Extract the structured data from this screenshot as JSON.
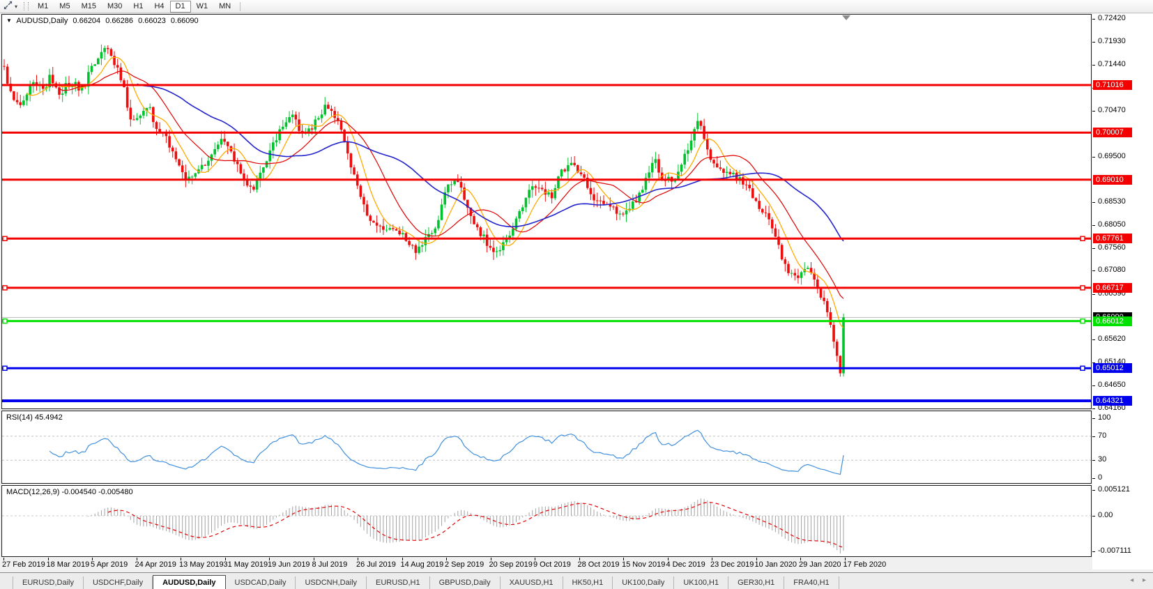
{
  "toolbar": {
    "dropdown_glyph": "▾",
    "timeframes": [
      "M1",
      "M5",
      "M15",
      "M30",
      "H1",
      "H4",
      "D1",
      "W1",
      "MN"
    ],
    "active_timeframe": "D1"
  },
  "chart": {
    "title": {
      "marker_glyph": "▼",
      "symbol": "AUDUSD,Daily",
      "open": "0.66204",
      "high": "0.66286",
      "low": "0.66023",
      "close": "0.66090"
    },
    "current_price": {
      "label": "0.66090",
      "value": 0.6609
    },
    "price_ticks": [
      "0.72420",
      "0.71930",
      "0.71440",
      "0.70960",
      "0.70470",
      "0.69500",
      "0.68530",
      "0.68050",
      "0.67560",
      "0.67080",
      "0.66590",
      "0.65620",
      "0.65140",
      "0.64650",
      "0.64160"
    ],
    "hlines": [
      {
        "label": "0.71016",
        "price": 0.71016,
        "color": "#f40000",
        "width": 3,
        "handles": false
      },
      {
        "label": "0.70007",
        "price": 0.70007,
        "color": "#f40000",
        "width": 3,
        "handles": false
      },
      {
        "label": "0.69010",
        "price": 0.6901,
        "color": "#f40000",
        "width": 3,
        "handles": false
      },
      {
        "label": "0.67761",
        "price": 0.67761,
        "color": "#f40000",
        "width": 3,
        "handles": true
      },
      {
        "label": "0.66717",
        "price": 0.66717,
        "color": "#f40000",
        "width": 3,
        "handles": true
      },
      {
        "label": "0.66012",
        "price": 0.66012,
        "color": "#00e100",
        "width": 3,
        "handles": true
      },
      {
        "label": "0.65012",
        "price": 0.65012,
        "color": "#0000ee",
        "width": 3,
        "handles": true
      },
      {
        "label": "0.64321",
        "price": 0.64321,
        "color": "#0000ee",
        "width": 4,
        "handles": false
      }
    ],
    "dates": [
      "27 Feb 2019",
      "18 Mar 2019",
      "5 Apr 2019",
      "24 Apr 2019",
      "13 May 2019",
      "31 May 2019",
      "19 Jun 2019",
      "8 Jul 2019",
      "26 Jul 2019",
      "14 Aug 2019",
      "2 Sep 2019",
      "20 Sep 2019",
      "9 Oct 2019",
      "28 Oct 2019",
      "15 Nov 2019",
      "4 Dec 2019",
      "23 Dec 2019",
      "10 Jan 2020",
      "29 Jan 2020",
      "17 Feb 2020"
    ],
    "bar_count": 260,
    "colors": {
      "bull": "#00c22c",
      "bear": "#ee0c0c",
      "ma_fast": "#ffaa00",
      "ma_mid": "#e00000",
      "ma_slow": "#2323cc",
      "bid_line": "#b8b8b8"
    },
    "ma_periods": {
      "fast": 8,
      "mid": 18,
      "slow": 42
    },
    "price_path": [
      [
        6,
        0.7135
      ],
      [
        14,
        0.7095
      ],
      [
        22,
        0.7068
      ],
      [
        30,
        0.7055
      ],
      [
        38,
        0.7082
      ],
      [
        46,
        0.7105
      ],
      [
        56,
        0.71
      ],
      [
        64,
        0.7088
      ],
      [
        72,
        0.7125
      ],
      [
        78,
        0.7098
      ],
      [
        86,
        0.708
      ],
      [
        95,
        0.71
      ],
      [
        104,
        0.711
      ],
      [
        112,
        0.7096
      ],
      [
        120,
        0.7095
      ],
      [
        130,
        0.7134
      ],
      [
        140,
        0.716
      ],
      [
        148,
        0.7182
      ],
      [
        154,
        0.7188
      ],
      [
        162,
        0.7156
      ],
      [
        172,
        0.7127
      ],
      [
        180,
        0.708
      ],
      [
        188,
        0.702
      ],
      [
        196,
        0.7028
      ],
      [
        205,
        0.7045
      ],
      [
        213,
        0.706
      ],
      [
        222,
        0.7016
      ],
      [
        232,
        0.7
      ],
      [
        242,
        0.698
      ],
      [
        252,
        0.6945
      ],
      [
        260,
        0.692
      ],
      [
        270,
        0.69
      ],
      [
        280,
        0.6912
      ],
      [
        292,
        0.693
      ],
      [
        304,
        0.6955
      ],
      [
        314,
        0.6985
      ],
      [
        320,
        0.6996
      ],
      [
        330,
        0.6962
      ],
      [
        340,
        0.6935
      ],
      [
        352,
        0.69
      ],
      [
        362,
        0.688
      ],
      [
        372,
        0.6912
      ],
      [
        384,
        0.695
      ],
      [
        396,
        0.699
      ],
      [
        408,
        0.7024
      ],
      [
        418,
        0.7045
      ],
      [
        428,
        0.701
      ],
      [
        438,
        0.7
      ],
      [
        448,
        0.7015
      ],
      [
        458,
        0.7035
      ],
      [
        468,
        0.7062
      ],
      [
        478,
        0.7045
      ],
      [
        490,
        0.7002
      ],
      [
        502,
        0.694
      ],
      [
        514,
        0.688
      ],
      [
        526,
        0.6832
      ],
      [
        538,
        0.6805
      ],
      [
        548,
        0.6795
      ],
      [
        558,
        0.6806
      ],
      [
        568,
        0.6797
      ],
      [
        578,
        0.678
      ],
      [
        588,
        0.676
      ],
      [
        596,
        0.6752
      ],
      [
        606,
        0.6766
      ],
      [
        616,
        0.6782
      ],
      [
        628,
        0.6812
      ],
      [
        638,
        0.6868
      ],
      [
        648,
        0.69
      ],
      [
        654,
        0.6905
      ],
      [
        664,
        0.6868
      ],
      [
        676,
        0.6825
      ],
      [
        688,
        0.679
      ],
      [
        700,
        0.6765
      ],
      [
        712,
        0.6747
      ],
      [
        722,
        0.6765
      ],
      [
        732,
        0.6785
      ],
      [
        742,
        0.682
      ],
      [
        752,
        0.6855
      ],
      [
        762,
        0.6882
      ],
      [
        772,
        0.6884
      ],
      [
        782,
        0.6874
      ],
      [
        792,
        0.6866
      ],
      [
        802,
        0.6908
      ],
      [
        812,
        0.693
      ],
      [
        822,
        0.6935
      ],
      [
        832,
        0.6912
      ],
      [
        842,
        0.6892
      ],
      [
        852,
        0.686
      ],
      [
        862,
        0.6848
      ],
      [
        872,
        0.6842
      ],
      [
        882,
        0.6835
      ],
      [
        892,
        0.682
      ],
      [
        902,
        0.6845
      ],
      [
        912,
        0.6855
      ],
      [
        922,
        0.6885
      ],
      [
        932,
        0.692
      ],
      [
        940,
        0.694
      ],
      [
        950,
        0.6897
      ],
      [
        960,
        0.69
      ],
      [
        970,
        0.6906
      ],
      [
        980,
        0.694
      ],
      [
        990,
        0.698
      ],
      [
        1000,
        0.7028
      ],
      [
        1006,
        0.7015
      ],
      [
        1014,
        0.6975
      ],
      [
        1022,
        0.6938
      ],
      [
        1032,
        0.692
      ],
      [
        1042,
        0.6916
      ],
      [
        1052,
        0.691
      ],
      [
        1062,
        0.69
      ],
      [
        1072,
        0.6888
      ],
      [
        1082,
        0.6858
      ],
      [
        1092,
        0.683
      ],
      [
        1102,
        0.682
      ],
      [
        1112,
        0.6785
      ],
      [
        1120,
        0.6738
      ],
      [
        1130,
        0.6705
      ],
      [
        1140,
        0.6692
      ],
      [
        1150,
        0.6706
      ],
      [
        1160,
        0.6718
      ],
      [
        1170,
        0.668
      ],
      [
        1178,
        0.6655
      ],
      [
        1186,
        0.662
      ],
      [
        1192,
        0.6595
      ],
      [
        1198,
        0.655
      ],
      [
        1203,
        0.65
      ],
      [
        1207,
        0.648
      ],
      [
        1210,
        0.6609
      ]
    ]
  },
  "rsi": {
    "label": "RSI(14) 45.4942",
    "period": 14,
    "color": "#3f8fdd",
    "levels": [
      70,
      30
    ],
    "ticks": [
      [
        "100",
        100
      ],
      [
        "70",
        70
      ],
      [
        "30",
        30
      ],
      [
        "0",
        0
      ]
    ]
  },
  "macd": {
    "label": "MACD(12,26,9) -0.004540 -0.005480",
    "fast": 12,
    "slow": 26,
    "signal": 9,
    "hist_color": "#a2a2a2",
    "signal_color": "#e00000",
    "ticks": [
      [
        "0.005121",
        0.005121
      ],
      [
        "0.00",
        0
      ],
      [
        "-0.007111",
        -0.007111
      ]
    ]
  },
  "tabs": {
    "scroll_left_glyph": "◂",
    "scroll_right_glyph": "▸",
    "items": [
      {
        "label": "EURUSD,Daily",
        "active": false
      },
      {
        "label": "USDCHF,Daily",
        "active": false
      },
      {
        "label": "AUDUSD,Daily",
        "active": true
      },
      {
        "label": "USDCAD,Daily",
        "active": false
      },
      {
        "label": "USDCNH,Daily",
        "active": false
      },
      {
        "label": "EURUSD,H1",
        "active": false
      },
      {
        "label": "GBPUSD,Daily",
        "active": false
      },
      {
        "label": "XAUUSD,H1",
        "active": false
      },
      {
        "label": "HK50,H1",
        "active": false
      },
      {
        "label": "UK100,Daily",
        "active": false
      },
      {
        "label": "UK100,H1",
        "active": false
      },
      {
        "label": "GER30,H1",
        "active": false
      },
      {
        "label": "FRA40,H1",
        "active": false
      }
    ]
  }
}
